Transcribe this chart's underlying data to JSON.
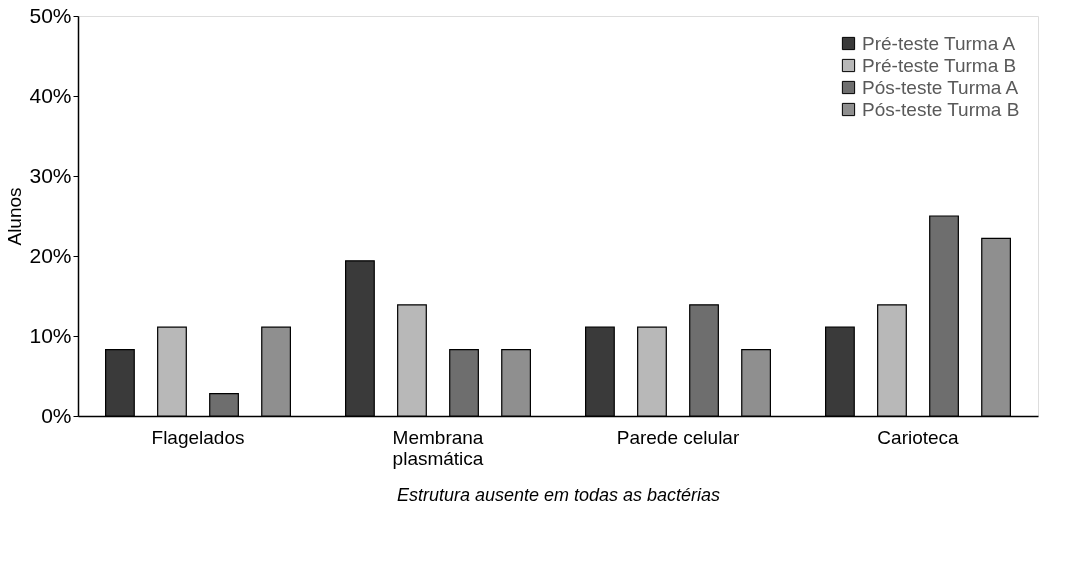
{
  "chart_data": {
    "type": "bar",
    "xlabel": "Estrutura ausente em todas as bactérias",
    "ylabel": "Alunos",
    "categories": [
      "Flagelados",
      "Membrana plasmática",
      "Parede celular",
      "Carioteca"
    ],
    "series": [
      {
        "name": "Pré-teste Turma A",
        "color": "#3a3a3a",
        "values": [
          8.3,
          19.4,
          11.1,
          11.1
        ]
      },
      {
        "name": "Pré-teste Turma B",
        "color": "#b8b8b8",
        "values": [
          11.1,
          13.9,
          11.1,
          13.9
        ]
      },
      {
        "name": "Pós-teste Turma A",
        "color": "#6e6e6e",
        "values": [
          2.8,
          8.3,
          13.9,
          25
        ]
      },
      {
        "name": "Pós-teste Turma B",
        "color": "#8f8f8f",
        "values": [
          11.1,
          8.3,
          8.3,
          22.2
        ]
      }
    ],
    "ylim": [
      0,
      50
    ],
    "yticks": [
      {
        "value": 0,
        "label": "0%"
      },
      {
        "value": 10,
        "label": "10%"
      },
      {
        "value": 20,
        "label": "20%"
      },
      {
        "value": 30,
        "label": "30%"
      },
      {
        "value": 40,
        "label": "40%"
      },
      {
        "value": 50,
        "label": "50%"
      }
    ],
    "grid": false,
    "legend": "top right"
  }
}
